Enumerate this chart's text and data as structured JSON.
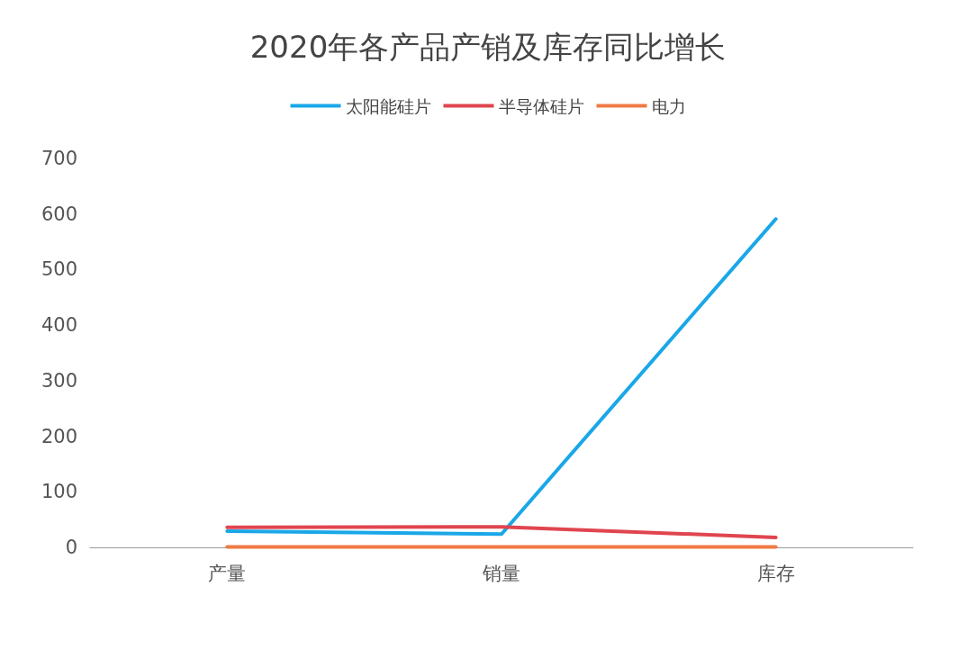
{
  "chart_data": {
    "type": "line",
    "title": "2020年各产品产销及库存同比增长",
    "categories": [
      "产量",
      "销量",
      "库存"
    ],
    "series": [
      {
        "name": "太阳能硅片",
        "color": "#1aa7e8",
        "values": [
          29,
          24,
          591
        ]
      },
      {
        "name": "半导体硅片",
        "color": "#e0454f",
        "values": [
          36,
          37,
          18
        ]
      },
      {
        "name": "电力",
        "color": "#ef7a45",
        "values": [
          1,
          1,
          1
        ]
      }
    ],
    "ylim": [
      0,
      700
    ],
    "yticks": [
      0,
      100,
      200,
      300,
      400,
      500,
      600,
      700
    ],
    "grid": false,
    "legend": "top",
    "marker": "none",
    "line_style": "solid"
  }
}
